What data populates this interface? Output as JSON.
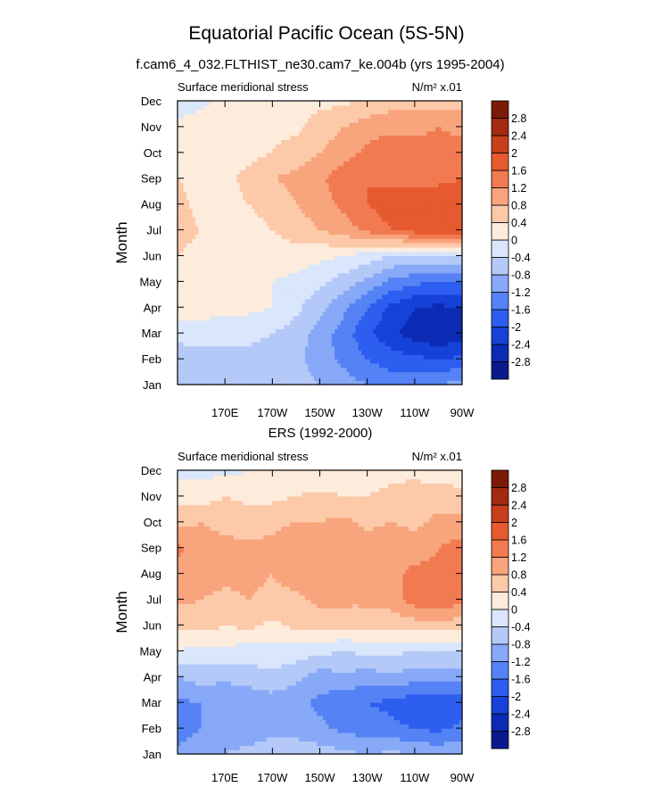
{
  "figure": {
    "title": "Equatorial Pacific Ocean (5S-5N)"
  },
  "colors": {
    "levels": [
      "#0a1a8c",
      "#0c2bb4",
      "#1642d8",
      "#2d5ef0",
      "#5583f5",
      "#87a9f7",
      "#b4c9f8",
      "#d9e6fb",
      "#fdebdc",
      "#fcc9a9",
      "#f8a47c",
      "#f27a51",
      "#e55a2e",
      "#c8401b",
      "#a22a10",
      "#7a1a08"
    ]
  },
  "chart_data": [
    {
      "type": "heatmap",
      "subtitle": "f.cam6_4_032.FLTHIST_ne30.cam7_ke.004b (yrs 1995-2004)",
      "left_label": "Surface meridional stress",
      "right_label": "N/m² x.01",
      "ylabel": "Month",
      "xlabel": "",
      "x_tick_labels": [
        "170E",
        "170W",
        "150W",
        "130W",
        "110W",
        "90W"
      ],
      "x_ticks": [
        170,
        190,
        210,
        230,
        250,
        270
      ],
      "xlim": [
        150,
        270
      ],
      "y_tick_labels": [
        "Jan",
        "Feb",
        "Mar",
        "Apr",
        "May",
        "Jun",
        "Jul",
        "Aug",
        "Sep",
        "Oct",
        "Nov",
        "Dec"
      ],
      "colorbar_labels": [
        "-2.8",
        "-2.4",
        "-2",
        "-1.6",
        "-1.2",
        "-0.8",
        "-0.4",
        "0",
        "0.4",
        "0.8",
        "1.2",
        "1.6",
        "2",
        "2.4",
        "2.8"
      ],
      "x": [
        150,
        160,
        170,
        180,
        190,
        200,
        210,
        220,
        230,
        240,
        250,
        260,
        270
      ],
      "z": [
        [
          -0.8,
          -0.8,
          -0.6,
          -0.5,
          -0.5,
          -0.6,
          -0.8,
          -1.0,
          -1.2,
          -1.4,
          -1.3,
          -1.2,
          -1.0
        ],
        [
          -0.7,
          -0.6,
          -0.5,
          -0.5,
          -0.6,
          -0.7,
          -1.0,
          -1.3,
          -1.6,
          -1.8,
          -1.9,
          -2.0,
          -1.9
        ],
        [
          -0.2,
          -0.2,
          -0.3,
          -0.3,
          -0.4,
          -0.6,
          -1.0,
          -1.4,
          -1.9,
          -2.3,
          -2.6,
          -2.8,
          -2.6
        ],
        [
          0.2,
          0.2,
          0.1,
          0.1,
          0.0,
          -0.3,
          -0.7,
          -1.1,
          -1.6,
          -2.1,
          -2.4,
          -2.5,
          -2.4
        ],
        [
          0.2,
          0.2,
          0.2,
          0.2,
          0.0,
          -0.1,
          -0.3,
          -0.6,
          -0.9,
          -1.3,
          -1.5,
          -1.6,
          -1.6
        ],
        [
          0.4,
          0.3,
          0.3,
          0.2,
          0.2,
          0.2,
          0.1,
          0.0,
          -0.2,
          -0.4,
          -0.5,
          -0.5,
          -0.5
        ],
        [
          0.5,
          0.4,
          0.3,
          0.3,
          0.4,
          0.6,
          0.8,
          1.0,
          1.3,
          1.6,
          1.8,
          1.9,
          1.9
        ],
        [
          0.5,
          0.3,
          0.3,
          0.4,
          0.5,
          0.8,
          1.0,
          1.3,
          1.6,
          1.8,
          1.9,
          1.9,
          1.9
        ],
        [
          0.4,
          0.3,
          0.3,
          0.5,
          0.8,
          0.9,
          1.1,
          1.5,
          1.6,
          1.5,
          1.4,
          1.5,
          1.6
        ],
        [
          0.3,
          0.3,
          0.3,
          0.3,
          0.4,
          0.6,
          0.8,
          1.0,
          1.3,
          1.5,
          1.4,
          1.3,
          1.4
        ],
        [
          0.1,
          0.2,
          0.2,
          0.2,
          0.3,
          0.3,
          0.6,
          0.8,
          1.0,
          1.1,
          1.1,
          1.2,
          1.1
        ],
        [
          -0.2,
          -0.1,
          0.1,
          0.1,
          0.2,
          0.2,
          0.3,
          0.3,
          0.5,
          0.6,
          0.7,
          0.6,
          0.6
        ]
      ]
    },
    {
      "type": "heatmap",
      "subtitle": "ERS (1992-2000)",
      "left_label": "Surface meridional stress",
      "right_label": "N/m² x.01",
      "ylabel": "Month",
      "xlabel": "",
      "x_tick_labels": [
        "170E",
        "170W",
        "150W",
        "130W",
        "110W",
        "90W"
      ],
      "x_ticks": [
        170,
        190,
        210,
        230,
        250,
        270
      ],
      "xlim": [
        150,
        270
      ],
      "y_tick_labels": [
        "Jan",
        "Feb",
        "Mar",
        "Apr",
        "May",
        "Jun",
        "Jul",
        "Aug",
        "Sep",
        "Oct",
        "Nov",
        "Dec"
      ],
      "colorbar_labels": [
        "-2.8",
        "-2.4",
        "-2",
        "-1.6",
        "-1.2",
        "-0.8",
        "-0.4",
        "0",
        "0.4",
        "0.8",
        "1.2",
        "1.6",
        "2",
        "2.4",
        "2.8"
      ],
      "x": [
        150,
        160,
        170,
        180,
        190,
        200,
        210,
        220,
        230,
        240,
        250,
        260,
        270
      ],
      "z": [
        [
          -1.1,
          -0.9,
          -0.8,
          -0.7,
          -0.6,
          -0.5,
          -0.6,
          -0.7,
          -0.8,
          -0.7,
          -0.8,
          -0.9,
          -0.8
        ],
        [
          -1.4,
          -1.2,
          -1.0,
          -1.0,
          -0.9,
          -1.0,
          -1.1,
          -1.3,
          -1.4,
          -1.5,
          -1.6,
          -1.7,
          -1.5
        ],
        [
          -1.3,
          -1.2,
          -1.2,
          -1.1,
          -1.0,
          -1.1,
          -1.3,
          -1.5,
          -1.6,
          -1.7,
          -1.9,
          -2.0,
          -1.8
        ],
        [
          -0.8,
          -0.6,
          -0.7,
          -0.6,
          -0.5,
          -0.7,
          -1.0,
          -0.9,
          -1.0,
          -0.9,
          -1.0,
          -1.0,
          -1.0
        ],
        [
          0.0,
          -0.2,
          -0.1,
          -0.2,
          -0.1,
          -0.2,
          -0.3,
          -0.4,
          -0.3,
          -0.3,
          -0.4,
          -0.4,
          -0.4
        ],
        [
          0.5,
          0.6,
          0.4,
          0.5,
          0.3,
          0.5,
          0.6,
          0.5,
          0.5,
          0.5,
          0.6,
          0.6,
          0.6
        ],
        [
          0.9,
          0.8,
          0.7,
          0.8,
          0.7,
          0.7,
          0.9,
          0.9,
          0.9,
          1.0,
          1.4,
          1.6,
          1.3
        ],
        [
          1.1,
          1.0,
          0.9,
          0.9,
          0.8,
          1.0,
          1.0,
          1.0,
          1.0,
          1.1,
          1.3,
          1.3,
          1.2
        ],
        [
          1.3,
          0.9,
          0.9,
          0.9,
          0.9,
          1.1,
          1.0,
          1.0,
          1.0,
          1.1,
          1.0,
          1.2,
          1.4
        ],
        [
          0.7,
          0.8,
          0.7,
          0.6,
          0.7,
          0.8,
          0.8,
          0.9,
          0.7,
          0.8,
          0.7,
          0.9,
          0.9
        ],
        [
          0.3,
          0.2,
          0.4,
          0.3,
          0.3,
          0.4,
          0.5,
          0.4,
          0.4,
          0.5,
          0.7,
          0.6,
          0.5
        ],
        [
          -0.2,
          -0.1,
          -0.1,
          0.0,
          0.0,
          0.1,
          0.1,
          0.2,
          0.2,
          0.3,
          0.2,
          0.2,
          0.2
        ]
      ]
    }
  ]
}
